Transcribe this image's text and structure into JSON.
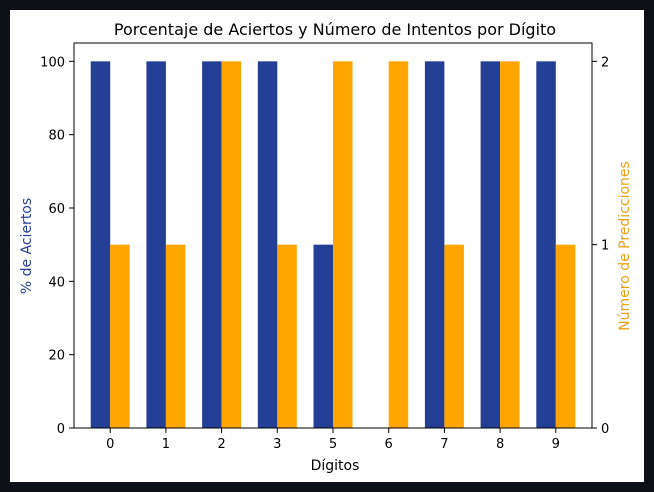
{
  "chart_data": {
    "type": "bar",
    "title": "Porcentaje de Aciertos y Número de Intentos por Dígito",
    "xlabel": "Dígitos",
    "ylabel_left": "% de Aciertos",
    "ylabel_right": "Número de Predicciones",
    "categories": [
      "0",
      "1",
      "2",
      "3",
      "5",
      "6",
      "7",
      "8",
      "9"
    ],
    "y_left_lim": [
      0,
      105
    ],
    "y_left_ticks": [
      0,
      20,
      40,
      60,
      80,
      100
    ],
    "y_right_lim": [
      0,
      2.1
    ],
    "y_right_ticks": [
      0,
      1,
      2
    ],
    "grid": false,
    "series": [
      {
        "axis": "left",
        "color": "#233f96",
        "values": [
          100,
          100,
          100,
          100,
          50,
          0,
          100,
          100,
          100
        ]
      },
      {
        "axis": "right",
        "color": "#ffa500",
        "values": [
          1,
          1,
          2,
          1,
          2,
          2,
          1,
          2,
          1
        ]
      }
    ],
    "colors": {
      "left_label": "#233f96",
      "right_label": "#e8a21a"
    }
  }
}
